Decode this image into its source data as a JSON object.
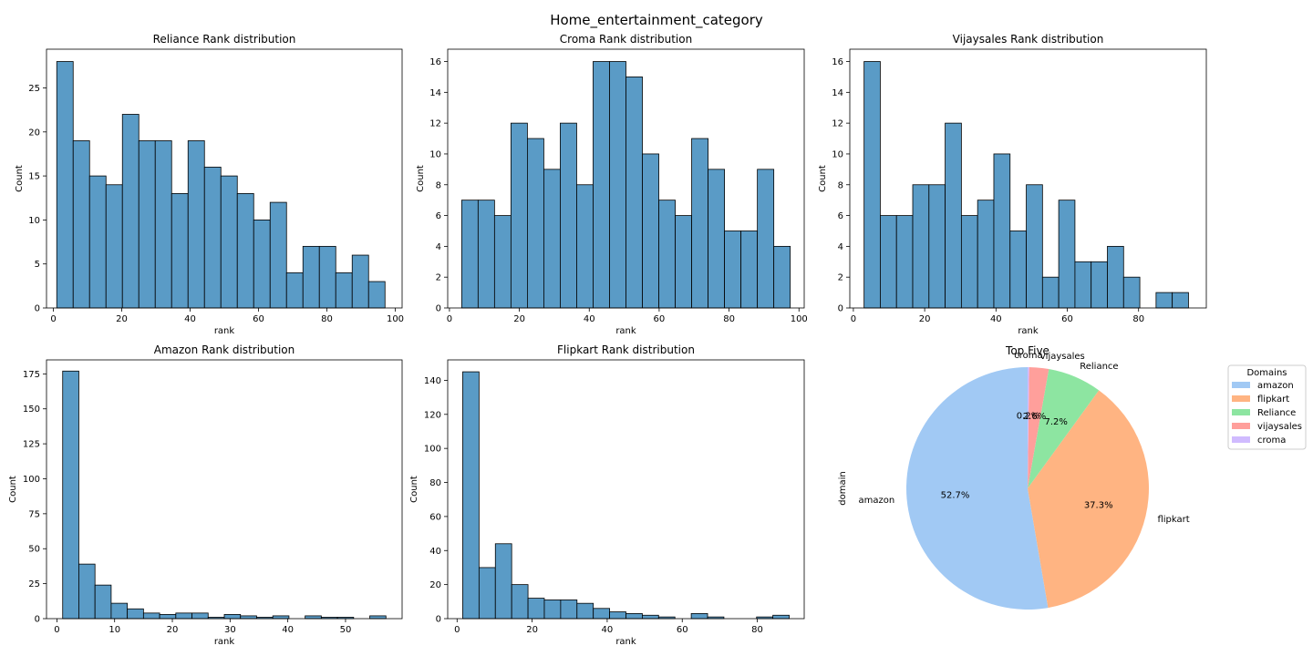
{
  "title": "Home_entertainment_category",
  "colors": {
    "bar_fill": "#5a9bc6",
    "bar_edge": "#000000",
    "pie": [
      "#a1c9f4",
      "#ffb482",
      "#8de5a1",
      "#ff9f9b",
      "#d0bbff"
    ]
  },
  "chart_data": [
    {
      "type": "bar",
      "subtype": "histogram",
      "title": "Reliance Rank distribution",
      "xlabel": "rank",
      "ylabel": "Count",
      "xlim": [
        -2,
        102
      ],
      "ylim": [
        0,
        29.4
      ],
      "xticks": [
        0,
        20,
        40,
        60,
        80,
        100
      ],
      "yticks": [
        0,
        5,
        10,
        15,
        20,
        25
      ],
      "bins": {
        "start": 1,
        "width": 4.8
      },
      "values": [
        28,
        19,
        15,
        14,
        22,
        19,
        19,
        13,
        19,
        16,
        15,
        13,
        10,
        12,
        4,
        7,
        7,
        4,
        6,
        3
      ]
    },
    {
      "type": "bar",
      "subtype": "histogram",
      "title": "Croma Rank distribution",
      "xlabel": "rank",
      "ylabel": "Count",
      "xlim": [
        -0.5,
        101.5
      ],
      "ylim": [
        0,
        16.8
      ],
      "xticks": [
        0,
        20,
        40,
        60,
        80,
        100
      ],
      "yticks": [
        0,
        2,
        4,
        6,
        8,
        10,
        12,
        14,
        16
      ],
      "bins": {
        "start": 3.5,
        "width": 4.7
      },
      "values": [
        7,
        7,
        6,
        12,
        11,
        9,
        12,
        8,
        16,
        16,
        15,
        10,
        7,
        6,
        11,
        9,
        5,
        5,
        9,
        4
      ]
    },
    {
      "type": "bar",
      "subtype": "histogram",
      "title": "Vijaysales Rank distribution",
      "xlabel": "rank",
      "ylabel": "Count",
      "xlim": [
        -1,
        99
      ],
      "ylim": [
        0,
        16.8
      ],
      "xticks": [
        0,
        20,
        40,
        60,
        80
      ],
      "yticks": [
        0,
        2,
        4,
        6,
        8,
        10,
        12,
        14,
        16
      ],
      "bins": {
        "start": 3,
        "width": 4.55
      },
      "values": [
        16,
        6,
        6,
        8,
        8,
        12,
        6,
        7,
        10,
        5,
        8,
        2,
        7,
        3,
        3,
        4,
        2,
        0,
        1,
        1
      ]
    },
    {
      "type": "bar",
      "subtype": "histogram",
      "title": "Amazon Rank distribution",
      "xlabel": "rank",
      "ylabel": "Count",
      "xlim": [
        -1.8,
        59.8
      ],
      "ylim": [
        0,
        185
      ],
      "xticks": [
        0,
        10,
        20,
        30,
        40,
        50
      ],
      "yticks": [
        0,
        25,
        50,
        75,
        100,
        125,
        150,
        175
      ],
      "bins": {
        "start": 1,
        "width": 2.8
      },
      "values": [
        177,
        39,
        24,
        11,
        7,
        4,
        3,
        4,
        4,
        1,
        3,
        2,
        1,
        2,
        0,
        2,
        1,
        1,
        0,
        2
      ]
    },
    {
      "type": "bar",
      "subtype": "histogram",
      "title": "Flipkart Rank distribution",
      "xlabel": "rank",
      "ylabel": "Count",
      "xlim": [
        -2.5,
        92.5
      ],
      "ylim": [
        0,
        152
      ],
      "xticks": [
        0,
        20,
        40,
        60,
        80
      ],
      "yticks": [
        0,
        20,
        40,
        60,
        80,
        100,
        120,
        140
      ],
      "bins": {
        "start": 1.5,
        "width": 4.35
      },
      "values": [
        145,
        30,
        44,
        20,
        12,
        11,
        11,
        9,
        6,
        4,
        3,
        2,
        1,
        0,
        3,
        1,
        0,
        0,
        1,
        2
      ]
    },
    {
      "type": "pie",
      "title": "Top Five",
      "ylabel": "domain",
      "legend_title": "Domains",
      "legend_position": "right, outside",
      "labels": [
        "amazon",
        "flipkart",
        "Reliance",
        "vijaysales",
        "croma"
      ],
      "values": [
        52.7,
        37.3,
        7.2,
        2.6,
        0.2
      ],
      "autopct": [
        "52.7%",
        "37.3%",
        "7.2%",
        "2.6%",
        "0.2%"
      ]
    }
  ]
}
